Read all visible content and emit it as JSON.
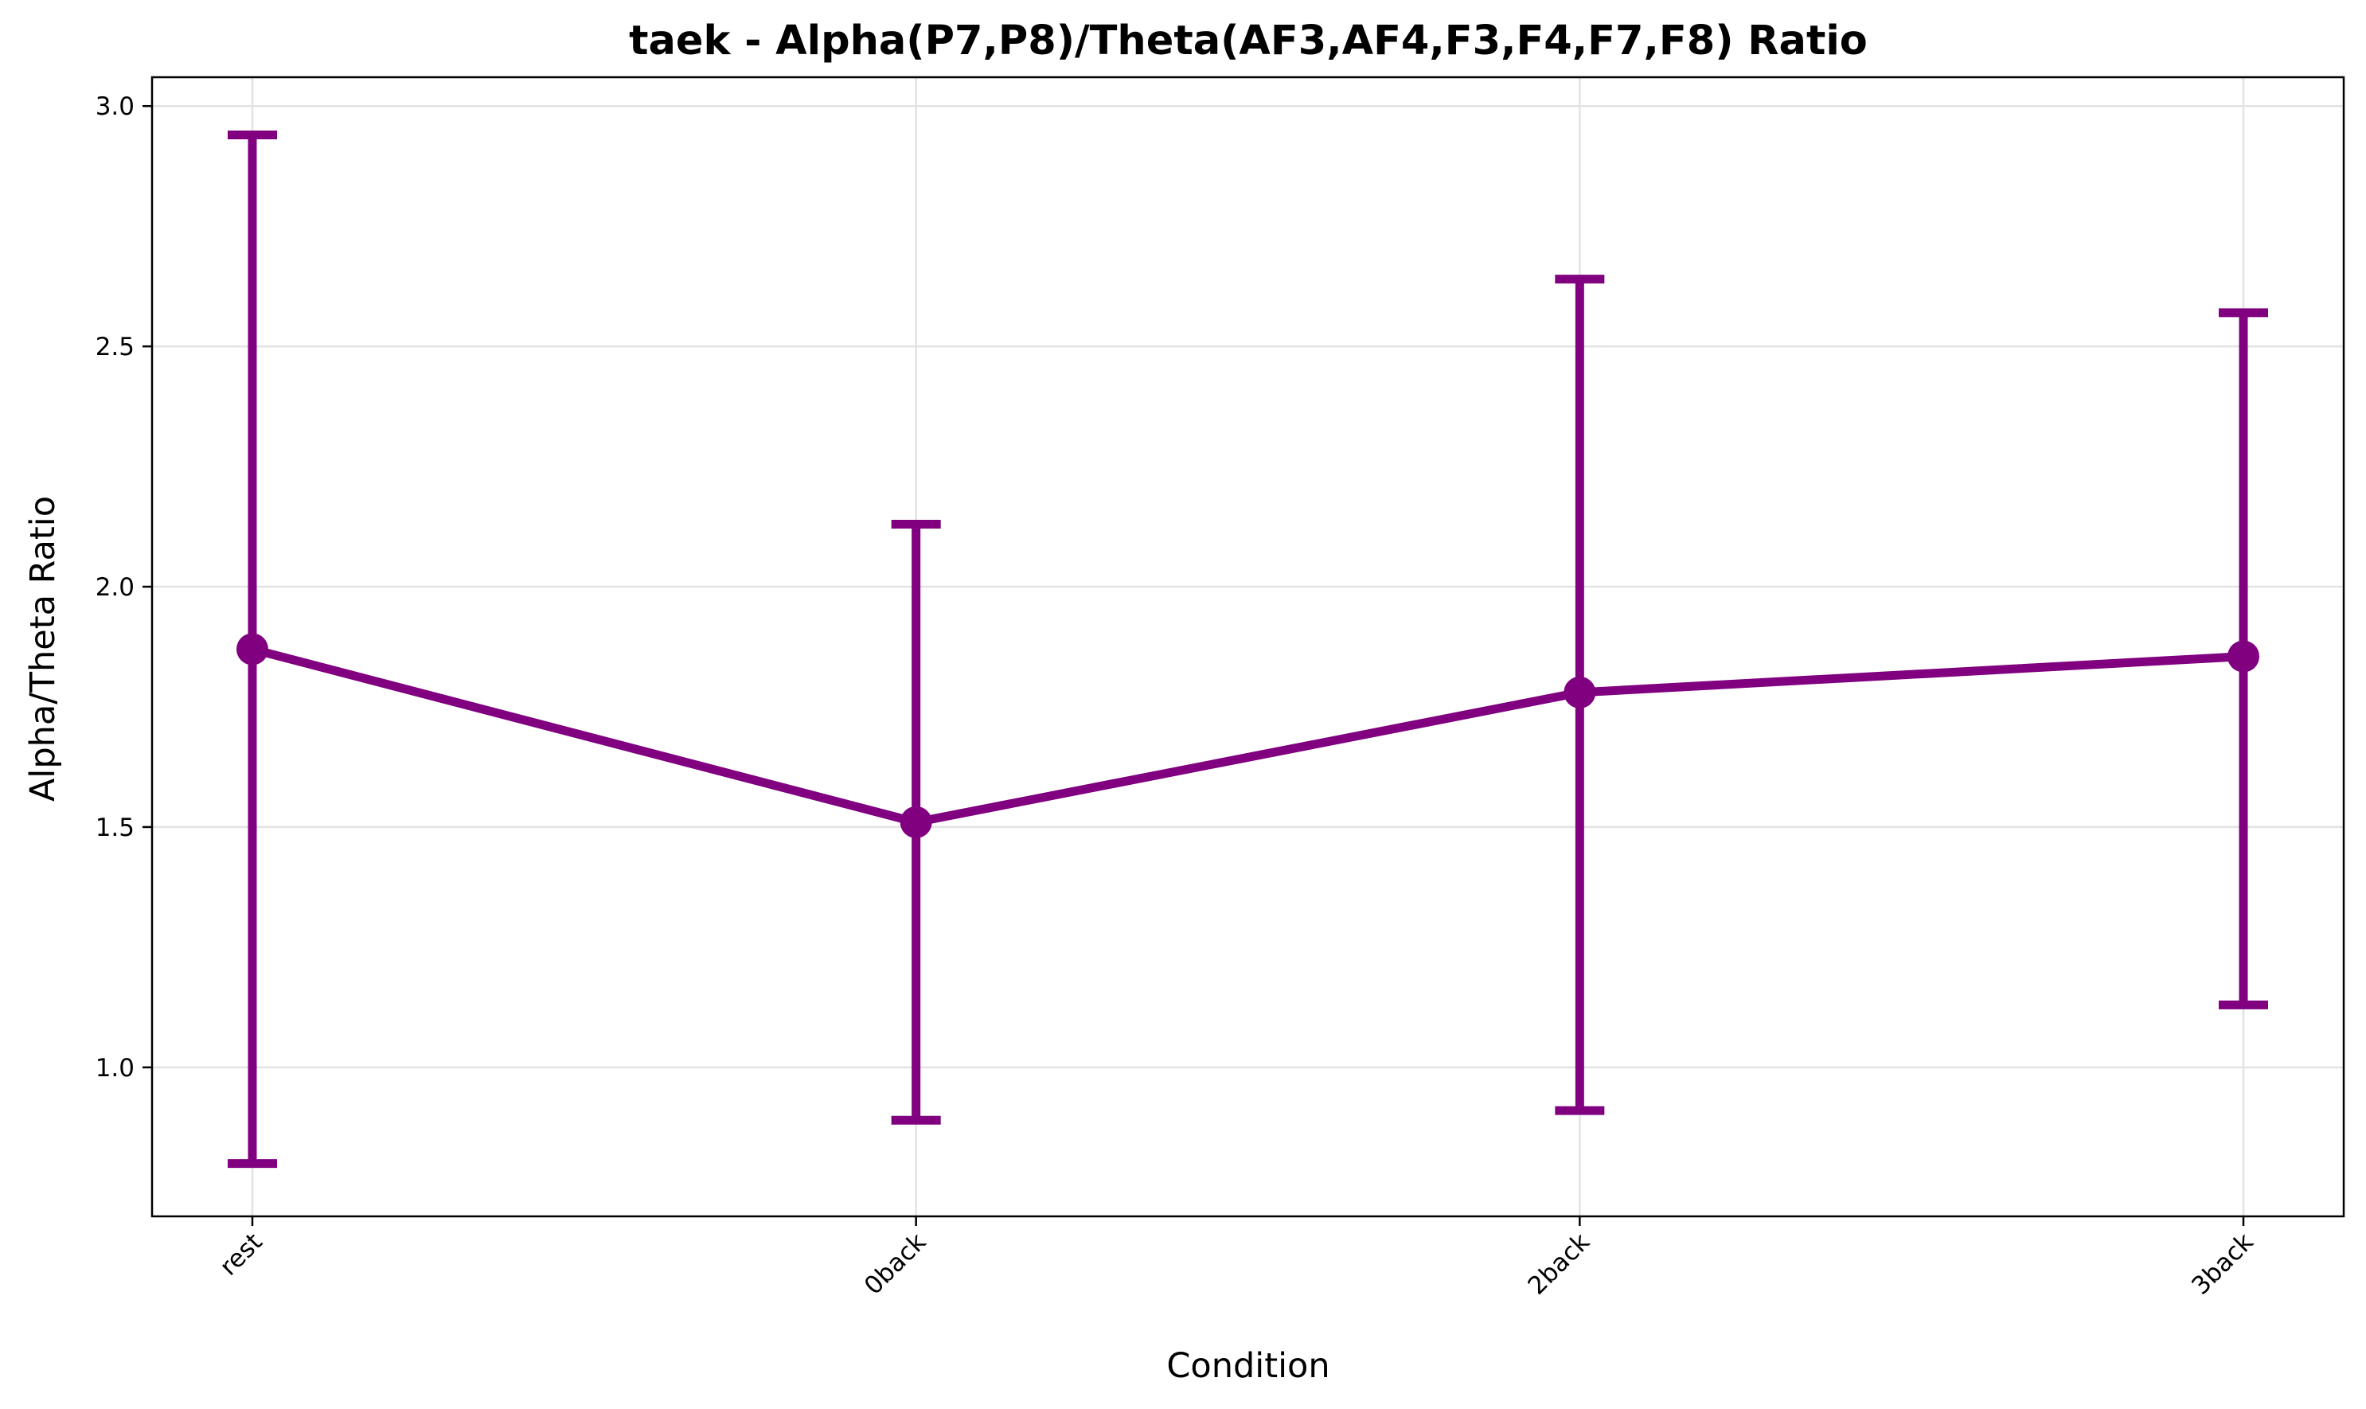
{
  "chart_data": {
    "type": "line",
    "title": "taek - Alpha(P7,P8)/Theta(AF3,AF4,F3,F4,F7,F8) Ratio",
    "xlabel": "Condition",
    "ylabel": "Alpha/Theta Ratio",
    "categories": [
      "rest",
      "0back",
      "2back",
      "3back"
    ],
    "series": [
      {
        "values": [
          1.87,
          1.51,
          1.78,
          1.855
        ],
        "error_low": [
          0.8,
          0.89,
          0.91,
          1.13
        ],
        "error_high": [
          2.94,
          2.13,
          2.64,
          2.57
        ],
        "color": "#800080"
      }
    ],
    "ylim": [
      0.69,
      3.06
    ],
    "yticks": [
      "1.0",
      "1.5",
      "2.0",
      "2.5",
      "3.0"
    ],
    "grid": true,
    "x_tick_rotation": 45
  }
}
